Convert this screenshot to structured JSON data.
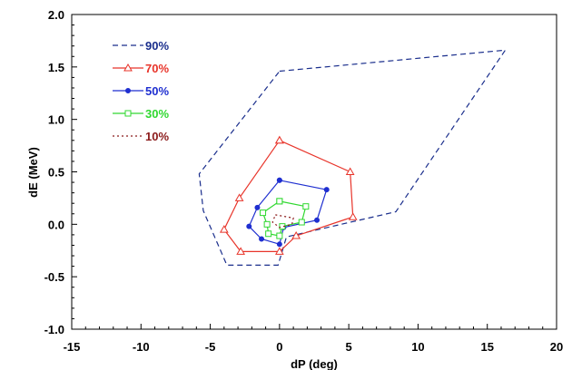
{
  "chart_data": {
    "type": "line",
    "title": "",
    "xlabel": "dP (deg)",
    "ylabel": "dE (MeV)",
    "xlim": [
      -15,
      20
    ],
    "ylim": [
      -1.0,
      2.0
    ],
    "xticks": [
      -15,
      -10,
      -5,
      0,
      5,
      10,
      15,
      20
    ],
    "xtick_labels": [
      "-15",
      "-10",
      "-5",
      "0",
      "5",
      "10",
      "15",
      "20"
    ],
    "yticks": [
      -1.0,
      -0.5,
      0.0,
      0.5,
      1.0,
      1.5,
      2.0
    ],
    "ytick_labels": [
      "-1.0",
      "-0.5",
      "0.0",
      "0.5",
      "1.0",
      "1.5",
      "2.0"
    ],
    "grid": false,
    "legend_position": "top-left",
    "series": [
      {
        "name": "90%",
        "color": "#1a2e8c",
        "style": "dashed",
        "marker": "none",
        "points": [
          [
            0.0,
            1.46
          ],
          [
            16.3,
            1.66
          ],
          [
            8.4,
            0.12
          ],
          [
            0.5,
            -0.12
          ],
          [
            -0.1,
            -0.39
          ],
          [
            -3.8,
            -0.39
          ],
          [
            -5.5,
            0.13
          ],
          [
            -5.8,
            0.48
          ],
          [
            0.0,
            1.46
          ]
        ]
      },
      {
        "name": "70%",
        "color": "#e8342a",
        "style": "solid",
        "marker": "triangle",
        "points": [
          [
            0.0,
            0.8
          ],
          [
            5.1,
            0.5
          ],
          [
            5.3,
            0.07
          ],
          [
            1.2,
            -0.11
          ],
          [
            0.0,
            -0.26
          ],
          [
            -2.8,
            -0.26
          ],
          [
            -4.0,
            -0.05
          ],
          [
            -2.9,
            0.25
          ],
          [
            0.0,
            0.8
          ]
        ]
      },
      {
        "name": "50%",
        "color": "#1f2fd0",
        "style": "solid",
        "marker": "dot",
        "points": [
          [
            0.0,
            0.42
          ],
          [
            3.4,
            0.33
          ],
          [
            2.7,
            0.04
          ],
          [
            0.3,
            -0.03
          ],
          [
            0.0,
            -0.19
          ],
          [
            -1.3,
            -0.14
          ],
          [
            -2.2,
            -0.02
          ],
          [
            -1.6,
            0.16
          ],
          [
            0.0,
            0.42
          ]
        ]
      },
      {
        "name": "30%",
        "color": "#30d830",
        "style": "solid",
        "marker": "square",
        "points": [
          [
            0.0,
            0.22
          ],
          [
            1.9,
            0.17
          ],
          [
            1.6,
            0.02
          ],
          [
            0.2,
            -0.02
          ],
          [
            0.0,
            -0.11
          ],
          [
            -0.8,
            -0.09
          ],
          [
            -0.9,
            0.0
          ],
          [
            -1.2,
            0.11
          ],
          [
            0.0,
            0.22
          ]
        ]
      },
      {
        "name": "10%",
        "color": "#8b1a1a",
        "style": "dotted",
        "marker": "none",
        "points": [
          [
            -0.3,
            0.09
          ],
          [
            1.0,
            0.06
          ],
          [
            0.9,
            0.0
          ],
          [
            0.0,
            -0.03
          ],
          [
            -0.5,
            0.02
          ],
          [
            -0.3,
            0.09
          ]
        ]
      }
    ]
  }
}
